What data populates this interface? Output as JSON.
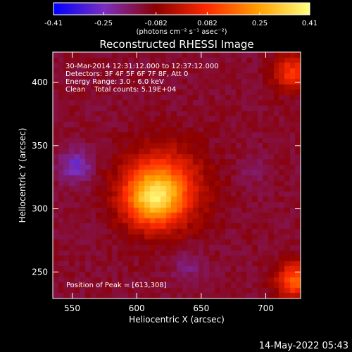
{
  "colorbar": {
    "tick_labels": [
      "-0.41",
      "-0.25",
      "-0.082",
      "0.082",
      "0.25",
      "0.41"
    ],
    "tick_values": [
      -0.41,
      -0.25,
      -0.082,
      0.082,
      0.25,
      0.41
    ],
    "range": [
      -0.41,
      0.41
    ],
    "units_label": "(photons cm⁻² s⁻¹ asec⁻²)",
    "colors": [
      "#0000ff",
      "#7b2fbe",
      "#8b0000",
      "#ff2a00",
      "#ffa000",
      "#ffff80"
    ]
  },
  "chart_data": {
    "type": "heatmap",
    "title": "Reconstructed RHESSI Image",
    "xlabel": "Heliocentric X (arcsec)",
    "ylabel": "Heliocentric Y (arcsec)",
    "xlim": [
      535,
      727
    ],
    "ylim": [
      229,
      424
    ],
    "x_ticks": [
      550,
      600,
      650,
      700
    ],
    "y_ticks": [
      250,
      300,
      350,
      400
    ],
    "x_tick_labels": [
      "550",
      "600",
      "650",
      "700"
    ],
    "y_tick_labels": [
      "250",
      "300",
      "350",
      "400"
    ],
    "annotations": [
      "30-Mar-2014 12:31:12.000 to 12:37:12.000",
      "Detectors: 3F 4F 5F 6F 7F 8F, Att 0",
      "Energy Range: 3.0 - 6.0 keV",
      "Clean    Total counts: 5.19E+04"
    ],
    "peak_label": "Position of Peak = [613,308]",
    "peak": [
      613,
      308
    ],
    "peak_value": 0.41,
    "background_value": -0.12,
    "source_fwhm_arcsec": 36,
    "negative_regions": [
      {
        "center": [
          553,
          334
        ],
        "value": -0.26
      },
      {
        "center": [
          640,
          254
        ],
        "value": -0.18
      },
      {
        "center": [
          690,
          330
        ],
        "value": -0.16
      }
    ],
    "positive_regions": [
      {
        "center": [
          723,
          243
        ],
        "value": 0.15
      },
      {
        "center": [
          720,
          408
        ],
        "value": 0.08
      }
    ]
  },
  "footer": {
    "timestamp": "14-May-2022 05:43"
  }
}
